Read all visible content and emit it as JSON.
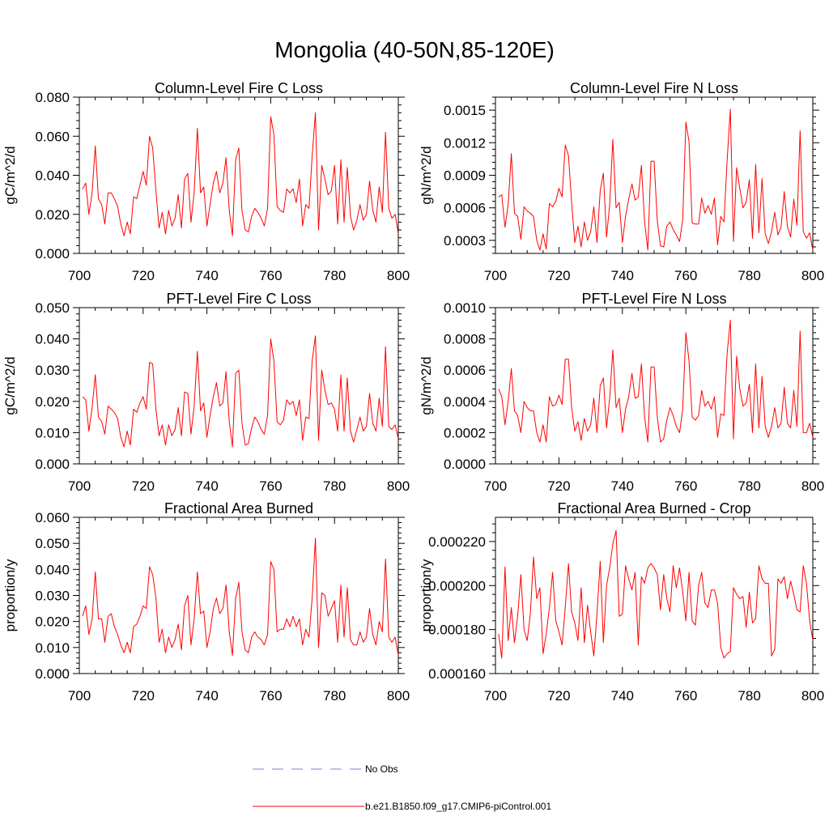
{
  "title": "Mongolia (40-50N,85-120E)",
  "colors": {
    "model": "#ff0000",
    "obs": "#7b7fd6",
    "axis": "#000000"
  },
  "legend": [
    {
      "label": "No Obs",
      "style": "dashed",
      "color": "#7b7fd6"
    },
    {
      "label": "b.e21.B1850.f09_g17.CMIP6-piControl.001",
      "style": "solid",
      "color": "#ff0000"
    }
  ],
  "chart_data": [
    {
      "type": "line",
      "title": "Column-Level Fire C Loss",
      "xlabel": "",
      "ylabel": "gC/m^2/d",
      "xlim": [
        700,
        800
      ],
      "ylim": [
        0,
        0.08
      ],
      "xticks": [
        700,
        720,
        740,
        760,
        780,
        800
      ],
      "yticks": [
        0,
        0.02,
        0.04,
        0.06,
        0.08
      ],
      "ytick_labels": [
        "0.000",
        "0.020",
        "0.040",
        "0.060",
        "0.080"
      ],
      "series": [
        {
          "name": "b.e21.B1850.f09_g17.CMIP6-piControl.001",
          "x0": 701,
          "values": [
            0.033,
            0.036,
            0.02,
            0.031,
            0.055,
            0.028,
            0.025,
            0.015,
            0.031,
            0.031,
            0.028,
            0.024,
            0.015,
            0.009,
            0.016,
            0.01,
            0.029,
            0.028,
            0.035,
            0.042,
            0.035,
            0.06,
            0.054,
            0.032,
            0.013,
            0.021,
            0.01,
            0.022,
            0.014,
            0.018,
            0.03,
            0.013,
            0.038,
            0.041,
            0.016,
            0.031,
            0.064,
            0.031,
            0.034,
            0.014,
            0.025,
            0.036,
            0.042,
            0.031,
            0.036,
            0.049,
            0.022,
            0.009,
            0.048,
            0.054,
            0.022,
            0.012,
            0.011,
            0.019,
            0.023,
            0.021,
            0.018,
            0.014,
            0.023,
            0.07,
            0.061,
            0.024,
            0.022,
            0.021,
            0.033,
            0.031,
            0.033,
            0.026,
            0.038,
            0.014,
            0.025,
            0.023,
            0.05,
            0.072,
            0.012,
            0.045,
            0.038,
            0.03,
            0.032,
            0.045,
            0.015,
            0.048,
            0.016,
            0.044,
            0.019,
            0.012,
            0.017,
            0.025,
            0.017,
            0.02,
            0.037,
            0.022,
            0.016,
            0.034,
            0.021,
            0.062,
            0.023,
            0.018,
            0.02,
            0.01
          ]
        }
      ]
    },
    {
      "type": "line",
      "title": "Column-Level Fire N Loss",
      "xlabel": "",
      "ylabel": "gN/m^2/d",
      "xlim": [
        700,
        800
      ],
      "ylim": [
        0.00018,
        0.00162
      ],
      "xticks": [
        700,
        720,
        740,
        760,
        780,
        800
      ],
      "yticks": [
        0.0003,
        0.0006,
        0.0009,
        0.0012,
        0.0015
      ],
      "ytick_labels": [
        "0.0003",
        "0.0006",
        "0.0009",
        "0.0012",
        "0.0015"
      ],
      "series": [
        {
          "name": "b.e21.B1850.f09_g17.CMIP6-piControl.001",
          "x0": 701,
          "values": [
            0.0007,
            0.00072,
            0.00042,
            0.00063,
            0.0011,
            0.00055,
            0.00052,
            0.00031,
            0.00061,
            0.00057,
            0.00055,
            0.00052,
            0.0003,
            0.00021,
            0.00036,
            0.00022,
            0.00064,
            0.00061,
            0.00066,
            0.00078,
            0.0007,
            0.00118,
            0.00108,
            0.00065,
            0.00028,
            0.00043,
            0.00024,
            0.00047,
            0.0003,
            0.00038,
            0.00061,
            0.00028,
            0.00076,
            0.00092,
            0.00033,
            0.00063,
            0.00123,
            0.0006,
            0.00065,
            0.00028,
            0.00052,
            0.00068,
            0.00082,
            0.00067,
            0.0007,
            0.00099,
            0.00047,
            0.00021,
            0.00103,
            0.00103,
            0.00048,
            0.00025,
            0.00024,
            0.00043,
            0.00047,
            0.0004,
            0.00035,
            0.00029,
            0.00049,
            0.00139,
            0.00121,
            0.00046,
            0.00045,
            0.00045,
            0.00069,
            0.00055,
            0.00062,
            0.00054,
            0.00069,
            0.00026,
            0.00052,
            0.00047,
            0.00104,
            0.00151,
            0.00029,
            0.00097,
            0.00078,
            0.0006,
            0.00065,
            0.00086,
            0.00032,
            0.001,
            0.00037,
            0.00087,
            0.00036,
            0.00027,
            0.00038,
            0.00056,
            0.00035,
            0.00042,
            0.00075,
            0.00043,
            0.00033,
            0.00068,
            0.00044,
            0.00131,
            0.00038,
            0.00032,
            0.00037,
            0.00021
          ]
        }
      ]
    },
    {
      "type": "line",
      "title": "PFT-Level Fire C Loss",
      "xlabel": "",
      "ylabel": "gC/m^2/d",
      "xlim": [
        700,
        800
      ],
      "ylim": [
        0,
        0.05
      ],
      "xticks": [
        700,
        720,
        740,
        760,
        780,
        800
      ],
      "yticks": [
        0,
        0.01,
        0.02,
        0.03,
        0.04,
        0.05
      ],
      "ytick_labels": [
        "0.000",
        "0.010",
        "0.020",
        "0.030",
        "0.040",
        "0.050"
      ],
      "series": [
        {
          "name": "b.e21.B1850.f09_g17.CMIP6-piControl.001",
          "x0": 701,
          "values": [
            0.0215,
            0.0205,
            0.0105,
            0.018,
            0.0285,
            0.015,
            0.0135,
            0.0095,
            0.0185,
            0.0175,
            0.0165,
            0.0145,
            0.0085,
            0.0055,
            0.0105,
            0.006,
            0.0175,
            0.0165,
            0.0195,
            0.0215,
            0.0175,
            0.0325,
            0.032,
            0.0175,
            0.009,
            0.0125,
            0.006,
            0.0125,
            0.009,
            0.011,
            0.018,
            0.009,
            0.023,
            0.0225,
            0.0095,
            0.0185,
            0.036,
            0.017,
            0.0195,
            0.0085,
            0.0155,
            0.0215,
            0.026,
            0.0185,
            0.0195,
            0.0295,
            0.0135,
            0.0055,
            0.029,
            0.03,
            0.013,
            0.006,
            0.0065,
            0.0115,
            0.015,
            0.0135,
            0.011,
            0.0095,
            0.0155,
            0.04,
            0.033,
            0.0135,
            0.0125,
            0.014,
            0.0205,
            0.019,
            0.02,
            0.0155,
            0.0205,
            0.0075,
            0.015,
            0.0145,
            0.033,
            0.041,
            0.0075,
            0.03,
            0.0235,
            0.019,
            0.0195,
            0.0175,
            0.0105,
            0.0285,
            0.0105,
            0.0275,
            0.0105,
            0.007,
            0.011,
            0.015,
            0.0105,
            0.012,
            0.0225,
            0.013,
            0.0105,
            0.021,
            0.012,
            0.0375,
            0.012,
            0.011,
            0.0125,
            0.008
          ]
        }
      ]
    },
    {
      "type": "line",
      "title": "PFT-Level Fire N Loss",
      "xlabel": "",
      "ylabel": "gN/m^2/d",
      "xlim": [
        700,
        800
      ],
      "ylim": [
        0,
        0.001
      ],
      "xticks": [
        700,
        720,
        740,
        760,
        780,
        800
      ],
      "yticks": [
        0,
        0.0002,
        0.0004,
        0.0006,
        0.0008,
        0.001
      ],
      "ytick_labels": [
        "0.0000",
        "0.0002",
        "0.0004",
        "0.0006",
        "0.0008",
        "0.0010"
      ],
      "series": [
        {
          "name": "b.e21.B1850.f09_g17.CMIP6-piControl.001",
          "x0": 701,
          "values": [
            0.00048,
            0.00043,
            0.00025,
            0.0004,
            0.00061,
            0.00034,
            0.00031,
            0.0002,
            0.0004,
            0.00036,
            0.00034,
            0.00034,
            0.0002,
            0.00014,
            0.00025,
            0.00014,
            0.00043,
            0.00037,
            0.00038,
            0.00044,
            0.00038,
            0.00067,
            0.00067,
            0.00036,
            0.00021,
            0.00027,
            0.00015,
            0.00029,
            0.00021,
            0.00025,
            0.00042,
            0.0002,
            0.0005,
            0.00055,
            0.00023,
            0.00042,
            0.00073,
            0.00036,
            0.00042,
            0.0002,
            0.00035,
            0.00043,
            0.00058,
            0.00042,
            0.00043,
            0.00064,
            0.0003,
            0.00014,
            0.00062,
            0.00062,
            0.0003,
            0.00014,
            0.00016,
            0.00028,
            0.00036,
            0.00031,
            0.00024,
            0.0002,
            0.00035,
            0.00084,
            0.00066,
            0.0003,
            0.00028,
            0.00031,
            0.00047,
            0.00037,
            0.0004,
            0.00035,
            0.00043,
            0.00017,
            0.00032,
            0.00031,
            0.00071,
            0.00092,
            0.00016,
            0.00069,
            0.00048,
            0.00037,
            0.00039,
            0.00051,
            0.0002,
            0.00064,
            0.00023,
            0.00056,
            0.00024,
            0.00017,
            0.00024,
            0.00036,
            0.00023,
            0.00026,
            0.00049,
            0.00026,
            0.00023,
            0.00047,
            0.00024,
            0.00085,
            0.0002,
            0.0002,
            0.00026,
            0.00017
          ]
        }
      ]
    },
    {
      "type": "line",
      "title": "Fractional Area Burned",
      "xlabel": "",
      "ylabel": "proportion/y",
      "xlim": [
        700,
        800
      ],
      "ylim": [
        0,
        0.06
      ],
      "xticks": [
        700,
        720,
        740,
        760,
        780,
        800
      ],
      "yticks": [
        0,
        0.01,
        0.02,
        0.03,
        0.04,
        0.05,
        0.06
      ],
      "ytick_labels": [
        "0.000",
        "0.010",
        "0.020",
        "0.030",
        "0.040",
        "0.050",
        "0.060"
      ],
      "series": [
        {
          "name": "b.e21.B1850.f09_g17.CMIP6-piControl.001",
          "x0": 701,
          "values": [
            0.022,
            0.026,
            0.015,
            0.021,
            0.039,
            0.021,
            0.021,
            0.012,
            0.022,
            0.023,
            0.018,
            0.015,
            0.011,
            0.008,
            0.012,
            0.008,
            0.018,
            0.019,
            0.022,
            0.026,
            0.025,
            0.041,
            0.038,
            0.029,
            0.012,
            0.017,
            0.008,
            0.014,
            0.01,
            0.013,
            0.019,
            0.009,
            0.026,
            0.03,
            0.011,
            0.021,
            0.039,
            0.023,
            0.024,
            0.01,
            0.016,
            0.025,
            0.029,
            0.023,
            0.025,
            0.034,
            0.016,
            0.007,
            0.029,
            0.035,
            0.016,
            0.009,
            0.008,
            0.014,
            0.016,
            0.014,
            0.013,
            0.011,
            0.015,
            0.043,
            0.04,
            0.016,
            0.017,
            0.017,
            0.021,
            0.018,
            0.022,
            0.018,
            0.021,
            0.011,
            0.017,
            0.014,
            0.029,
            0.052,
            0.01,
            0.031,
            0.03,
            0.022,
            0.025,
            0.028,
            0.012,
            0.034,
            0.014,
            0.033,
            0.013,
            0.011,
            0.011,
            0.016,
            0.012,
            0.014,
            0.025,
            0.015,
            0.011,
            0.02,
            0.016,
            0.044,
            0.014,
            0.012,
            0.014,
            0.007
          ]
        }
      ]
    },
    {
      "type": "line",
      "title": "Fractional Area Burned - Crop",
      "xlabel": "",
      "ylabel": "proportion/y",
      "xlim": [
        700,
        800
      ],
      "ylim": [
        0.00016,
        0.000231
      ],
      "xticks": [
        700,
        720,
        740,
        760,
        780,
        800
      ],
      "yticks": [
        0.00016,
        0.00018,
        0.0002,
        0.00022
      ],
      "ytick_labels": [
        "0.000160",
        "0.000180",
        "0.000200",
        "0.000220"
      ],
      "series": [
        {
          "name": "b.e21.B1850.f09_g17.CMIP6-piControl.001",
          "x0": 701,
          "values": [
            0.000178,
            0.000167,
            0.0002085,
            0.000175,
            0.00019,
            0.000174,
            0.000186,
            0.000205,
            0.00018,
            0.000175,
            0.000187,
            0.000213,
            0.000194,
            0.000199,
            0.000169,
            0.000178,
            0.00019,
            0.000206,
            0.000184,
            0.000179,
            0.000173,
            0.00019,
            0.00021,
            0.000188,
            0.000183,
            0.000175,
            0.000199,
            0.000174,
            0.000191,
            0.000179,
            0.000168,
            0.000187,
            0.000211,
            0.000174,
            0.0002,
            0.000208,
            0.000219,
            0.000225,
            0.000186,
            0.000187,
            0.000209,
            0.000203,
            0.000198,
            0.000206,
            0.000173,
            0.000204,
            0.000201,
            0.000208,
            0.00021,
            0.000208,
            0.000205,
            0.000189,
            0.000205,
            0.000194,
            0.000188,
            0.000209,
            0.000199,
            0.000208,
            0.000197,
            0.000184,
            0.000206,
            0.000184,
            0.000182,
            0.0002,
            0.000206,
            0.000192,
            0.00019,
            0.000198,
            0.000198,
            0.000192,
            0.000172,
            0.000167,
            0.000169,
            0.00017,
            0.000199,
            0.000196,
            0.000194,
            0.000195,
            0.000181,
            0.000197,
            0.000183,
            0.000185,
            0.000209,
            0.000203,
            0.000201,
            0.000201,
            0.000168,
            0.000171,
            0.000203,
            0.000201,
            0.000204,
            0.000194,
            0.000202,
            0.000196,
            0.000189,
            0.000188,
            0.000209,
            0.000201,
            0.000184,
            0.000175
          ]
        }
      ]
    }
  ]
}
